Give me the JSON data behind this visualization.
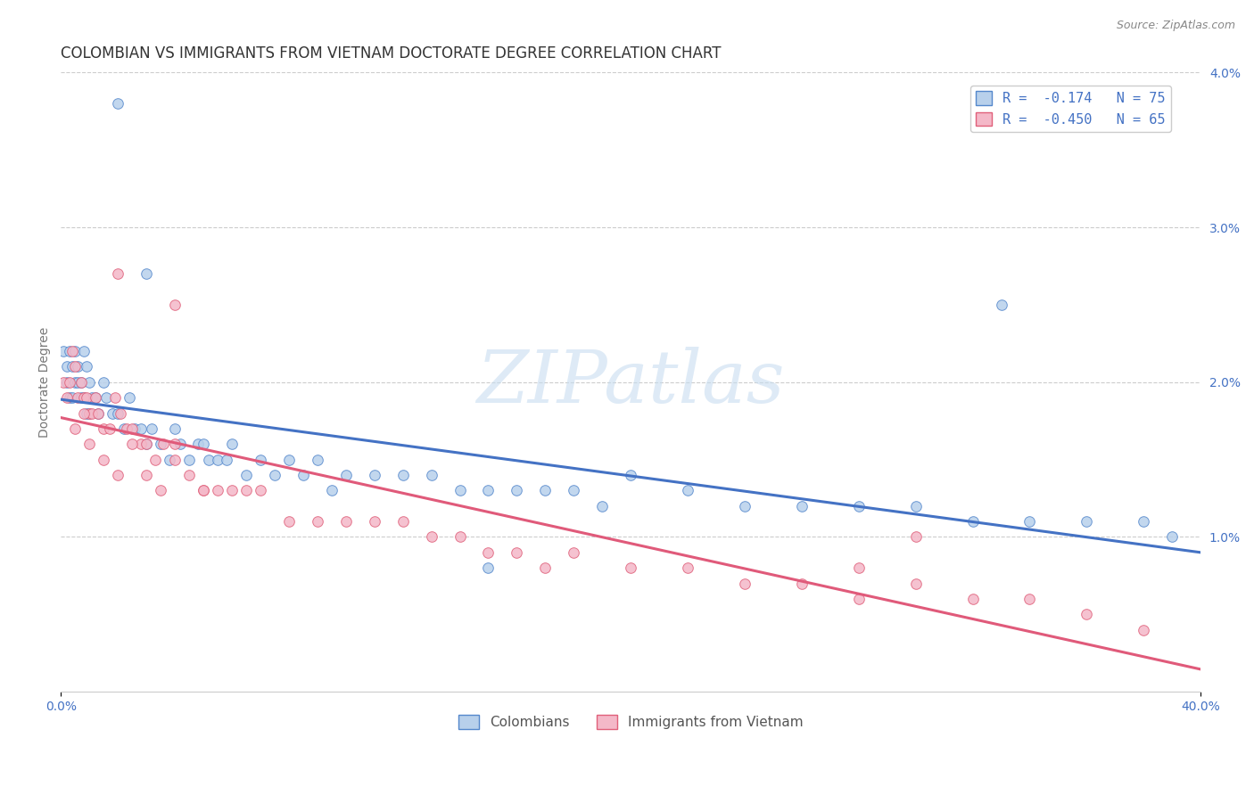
{
  "title": "COLOMBIAN VS IMMIGRANTS FROM VIETNAM DOCTORATE DEGREE CORRELATION CHART",
  "source": "Source: ZipAtlas.com",
  "ylabel": "Doctorate Degree",
  "xlim": [
    0.0,
    0.4
  ],
  "ylim": [
    -0.002,
    0.042
  ],
  "plot_ylim": [
    0.0,
    0.04
  ],
  "x_ticks": [
    0.0,
    0.4
  ],
  "x_tick_labels": [
    "0.0%",
    "40.0%"
  ],
  "y_ticks_right": [
    0.01,
    0.02,
    0.03,
    0.04
  ],
  "y_tick_labels_right": [
    "1.0%",
    "2.0%",
    "3.0%",
    "4.0%"
  ],
  "colombian_color": "#b8d0eb",
  "vietnam_color": "#f4b8c8",
  "colombian_edge_color": "#5588cc",
  "vietnam_edge_color": "#e0607a",
  "colombian_line_color": "#4472c4",
  "vietnam_line_color": "#e05a7a",
  "legend_line1": "R =  -0.174   N = 75",
  "legend_line2": "R =  -0.450   N = 65",
  "watermark": "ZIPatlas",
  "legend_label_colombian": "Colombians",
  "legend_label_vietnam": "Immigrants from Vietnam",
  "colombian_x": [
    0.001,
    0.002,
    0.002,
    0.003,
    0.003,
    0.004,
    0.004,
    0.005,
    0.005,
    0.006,
    0.006,
    0.007,
    0.007,
    0.008,
    0.008,
    0.009,
    0.009,
    0.01,
    0.01,
    0.011,
    0.012,
    0.013,
    0.015,
    0.016,
    0.018,
    0.02,
    0.022,
    0.024,
    0.026,
    0.028,
    0.03,
    0.032,
    0.035,
    0.038,
    0.04,
    0.042,
    0.045,
    0.048,
    0.05,
    0.052,
    0.055,
    0.058,
    0.06,
    0.065,
    0.07,
    0.075,
    0.08,
    0.085,
    0.09,
    0.095,
    0.1,
    0.11,
    0.12,
    0.13,
    0.14,
    0.15,
    0.16,
    0.17,
    0.18,
    0.19,
    0.2,
    0.22,
    0.24,
    0.26,
    0.28,
    0.3,
    0.32,
    0.34,
    0.36,
    0.38,
    0.39,
    0.15,
    0.02,
    0.03,
    0.33
  ],
  "colombian_y": [
    0.022,
    0.021,
    0.02,
    0.022,
    0.019,
    0.021,
    0.019,
    0.022,
    0.02,
    0.021,
    0.02,
    0.019,
    0.02,
    0.022,
    0.019,
    0.021,
    0.018,
    0.02,
    0.018,
    0.019,
    0.019,
    0.018,
    0.02,
    0.019,
    0.018,
    0.018,
    0.017,
    0.019,
    0.017,
    0.017,
    0.016,
    0.017,
    0.016,
    0.015,
    0.017,
    0.016,
    0.015,
    0.016,
    0.016,
    0.015,
    0.015,
    0.015,
    0.016,
    0.014,
    0.015,
    0.014,
    0.015,
    0.014,
    0.015,
    0.013,
    0.014,
    0.014,
    0.014,
    0.014,
    0.013,
    0.013,
    0.013,
    0.013,
    0.013,
    0.012,
    0.014,
    0.013,
    0.012,
    0.012,
    0.012,
    0.012,
    0.011,
    0.011,
    0.011,
    0.011,
    0.01,
    0.008,
    0.038,
    0.027,
    0.025
  ],
  "vietnam_x": [
    0.001,
    0.002,
    0.003,
    0.004,
    0.005,
    0.006,
    0.007,
    0.008,
    0.009,
    0.01,
    0.011,
    0.012,
    0.013,
    0.015,
    0.017,
    0.019,
    0.021,
    0.023,
    0.025,
    0.028,
    0.03,
    0.033,
    0.036,
    0.04,
    0.045,
    0.05,
    0.055,
    0.06,
    0.065,
    0.07,
    0.08,
    0.09,
    0.1,
    0.11,
    0.12,
    0.13,
    0.14,
    0.15,
    0.16,
    0.18,
    0.2,
    0.22,
    0.24,
    0.26,
    0.28,
    0.3,
    0.32,
    0.34,
    0.36,
    0.38,
    0.005,
    0.008,
    0.01,
    0.015,
    0.02,
    0.025,
    0.03,
    0.035,
    0.04,
    0.05,
    0.02,
    0.04,
    0.17,
    0.28,
    0.3
  ],
  "vietnam_y": [
    0.02,
    0.019,
    0.02,
    0.022,
    0.021,
    0.019,
    0.02,
    0.019,
    0.019,
    0.018,
    0.018,
    0.019,
    0.018,
    0.017,
    0.017,
    0.019,
    0.018,
    0.017,
    0.017,
    0.016,
    0.016,
    0.015,
    0.016,
    0.015,
    0.014,
    0.013,
    0.013,
    0.013,
    0.013,
    0.013,
    0.011,
    0.011,
    0.011,
    0.011,
    0.011,
    0.01,
    0.01,
    0.009,
    0.009,
    0.009,
    0.008,
    0.008,
    0.007,
    0.007,
    0.006,
    0.007,
    0.006,
    0.006,
    0.005,
    0.004,
    0.017,
    0.018,
    0.016,
    0.015,
    0.014,
    0.016,
    0.014,
    0.013,
    0.016,
    0.013,
    0.027,
    0.025,
    0.008,
    0.008,
    0.01
  ],
  "background_color": "#ffffff",
  "grid_color": "#cccccc",
  "title_fontsize": 12,
  "axis_label_fontsize": 10,
  "tick_fontsize": 10,
  "marker_size": 70
}
